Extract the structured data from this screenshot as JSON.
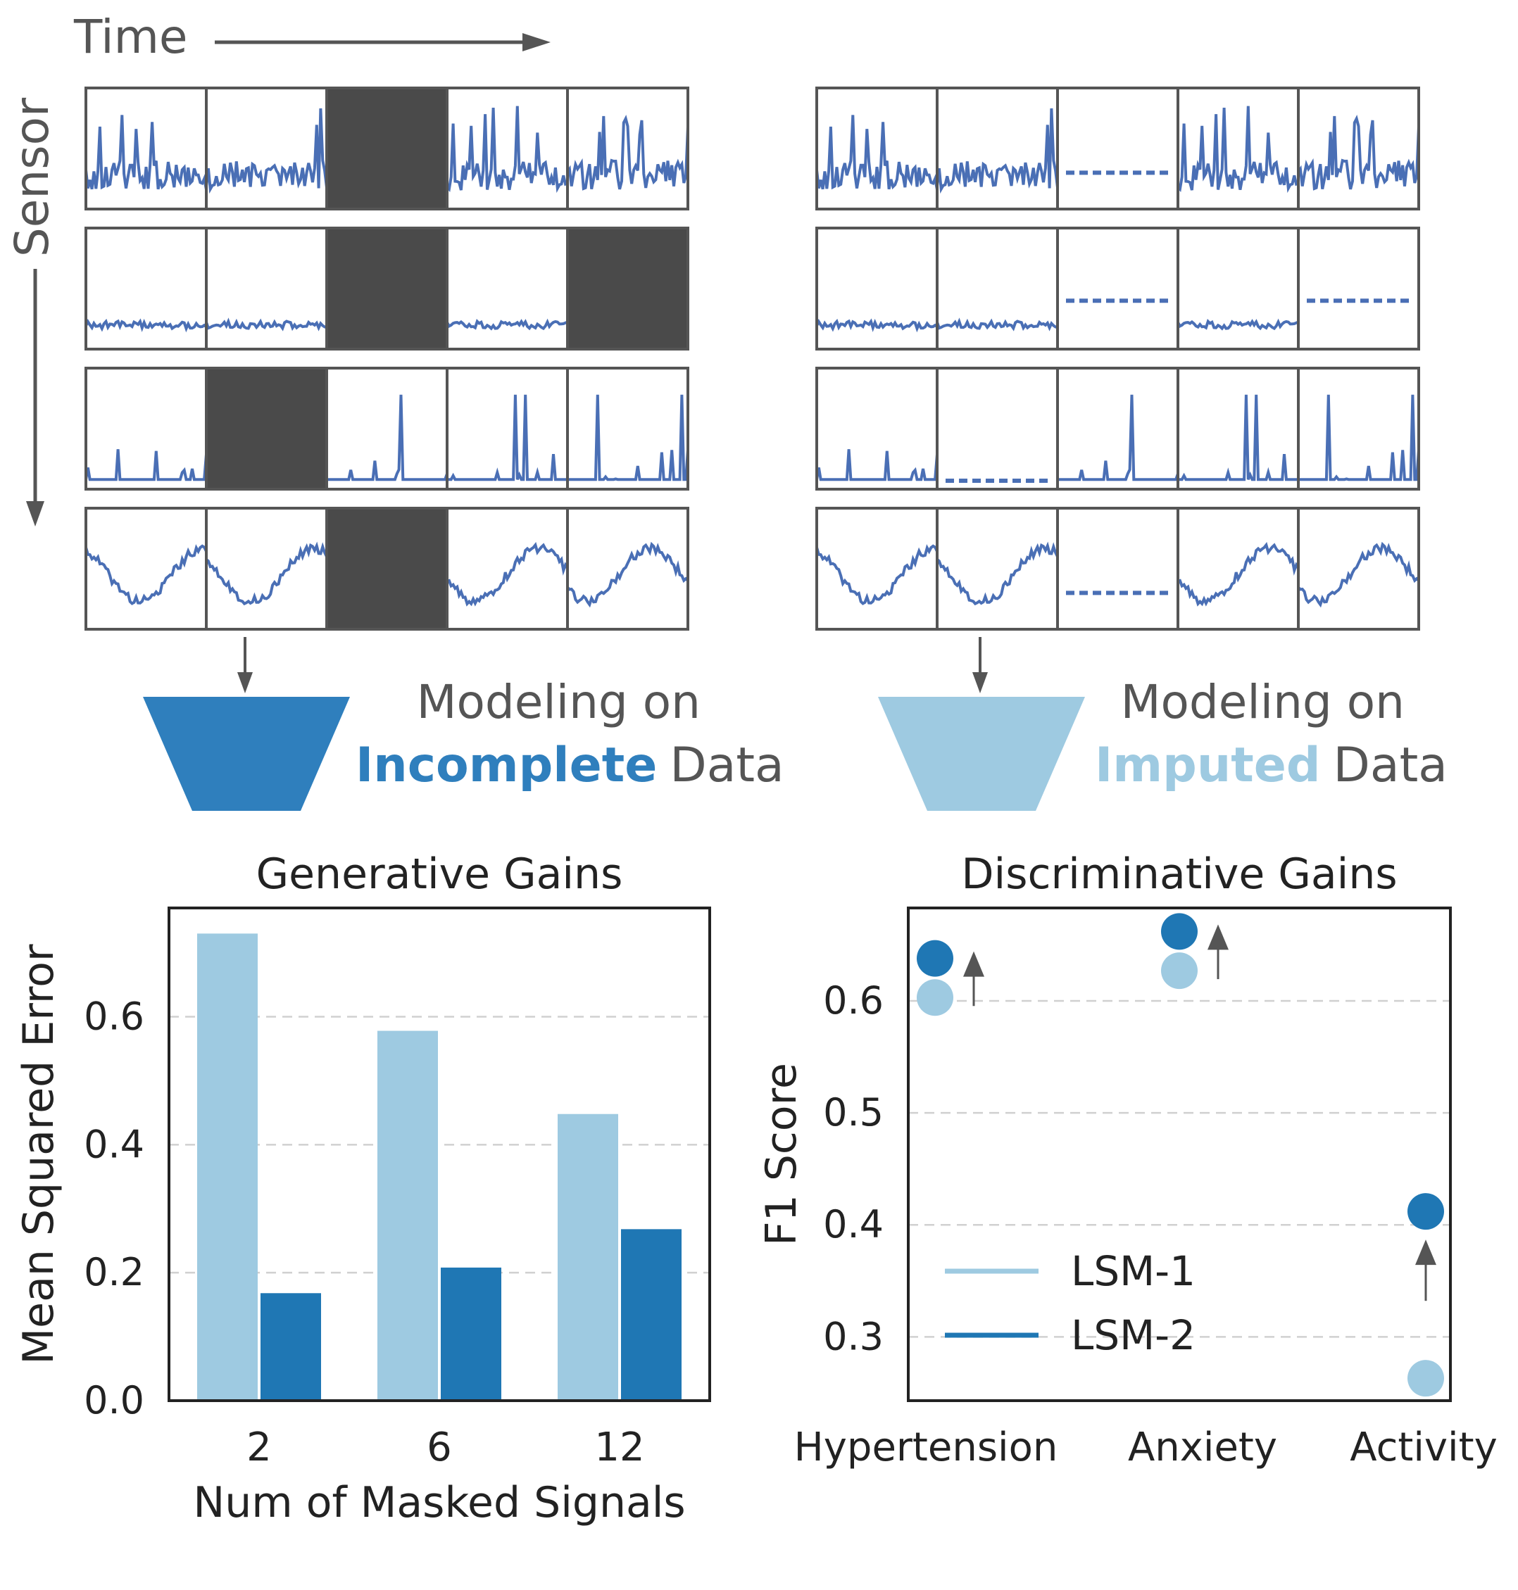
{
  "diagram": {
    "time_label": "Time",
    "sensor_label": "Sensor",
    "left_caption": {
      "line1": "Modeling on",
      "emph": "Incomplete",
      "rest": "Data"
    },
    "right_caption": {
      "line1": "Modeling on",
      "emph": "Imputed",
      "rest": "Data"
    },
    "masked_cells": [
      [
        0,
        2
      ],
      [
        1,
        2
      ],
      [
        1,
        4
      ],
      [
        2,
        1
      ],
      [
        3,
        2
      ]
    ]
  },
  "colors": {
    "signal": "#4a6fb5",
    "mask": "#4a4a4a",
    "frame": "#555555",
    "lsm1": "#9ecae1",
    "lsm2": "#1f77b4",
    "funnel_dark": "#2f7fbd",
    "funnel_light": "#9ecae1",
    "text": "#222222",
    "grey_text": "#555555",
    "arrow": "#555555"
  },
  "chart_data": [
    {
      "type": "bar",
      "title": "Generative Gains",
      "xlabel": "Num of Masked Signals",
      "ylabel": "Mean Squared Error",
      "categories": [
        "2",
        "6",
        "12"
      ],
      "series": [
        {
          "name": "LSM-1",
          "values": [
            0.73,
            0.578,
            0.448
          ]
        },
        {
          "name": "LSM-2",
          "values": [
            0.168,
            0.208,
            0.268
          ]
        }
      ],
      "yticks": [
        0.0,
        0.2,
        0.4,
        0.6
      ],
      "ytick_labels": [
        "0.0",
        "0.2",
        "0.4",
        "0.6"
      ],
      "ylim": [
        0.0,
        0.77
      ],
      "grid": true
    },
    {
      "type": "scatter",
      "title": "Discriminative Gains",
      "xlabel": "",
      "ylabel": "F1 Score",
      "categories": [
        "Hypertension",
        "Anxiety",
        "Activity"
      ],
      "series": [
        {
          "name": "LSM-1",
          "values": [
            0.603,
            0.627,
            0.263
          ]
        },
        {
          "name": "LSM-2",
          "values": [
            0.638,
            0.662,
            0.412
          ]
        }
      ],
      "yticks": [
        0.3,
        0.4,
        0.5,
        0.6
      ],
      "ytick_labels": [
        "0.3",
        "0.4",
        "0.5",
        "0.6"
      ],
      "ylim": [
        0.243,
        0.683
      ],
      "legend": {
        "position": "lower-left",
        "entries": [
          "LSM-1",
          "LSM-2"
        ]
      },
      "grid": true
    }
  ]
}
